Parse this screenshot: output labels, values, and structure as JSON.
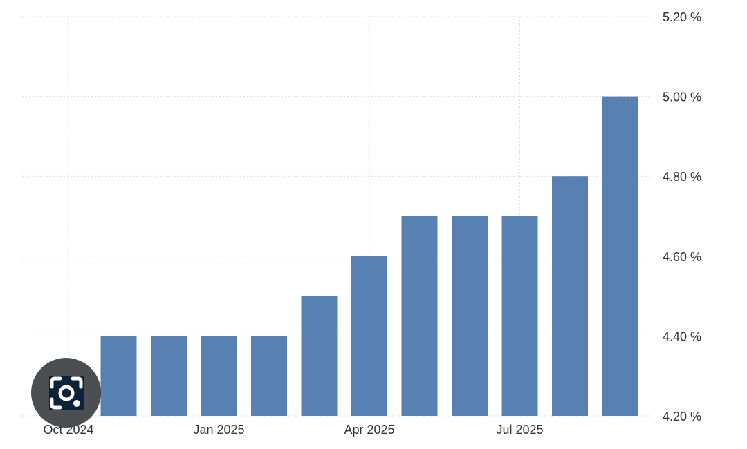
{
  "chart_data": {
    "type": "bar",
    "categories": [
      "Oct 2024",
      "Nov 2024",
      "Dec 2024",
      "Jan 2025",
      "Feb 2025",
      "Mar 2025",
      "Apr 2025",
      "May 2025",
      "Jun 2025",
      "Jul 2025",
      "Aug 2025",
      "Sep 2025"
    ],
    "values": [
      4.2,
      4.4,
      4.4,
      4.4,
      4.4,
      4.5,
      4.6,
      4.7,
      4.7,
      4.7,
      4.8,
      5.0
    ],
    "x_tick_labels": [
      "Oct 2024",
      "Jan 2025",
      "Apr 2025",
      "Jul 2025"
    ],
    "y_tick_labels": [
      "5.20 %",
      "5.00 %",
      "4.80 %",
      "4.60 %",
      "4.40 %",
      "4.20 %"
    ],
    "y_ticks": [
      5.2,
      5.0,
      4.8,
      4.6,
      4.4,
      4.2
    ],
    "ylim": [
      4.2,
      5.2
    ],
    "y_axis_side": "right",
    "grid": true,
    "title": "",
    "xlabel": "",
    "ylabel": "",
    "bar_color": "#5881b3",
    "grid_color": "#d9d9d9",
    "text_color": "#333333"
  },
  "overlay": {
    "icon": "camera-search-icon"
  }
}
